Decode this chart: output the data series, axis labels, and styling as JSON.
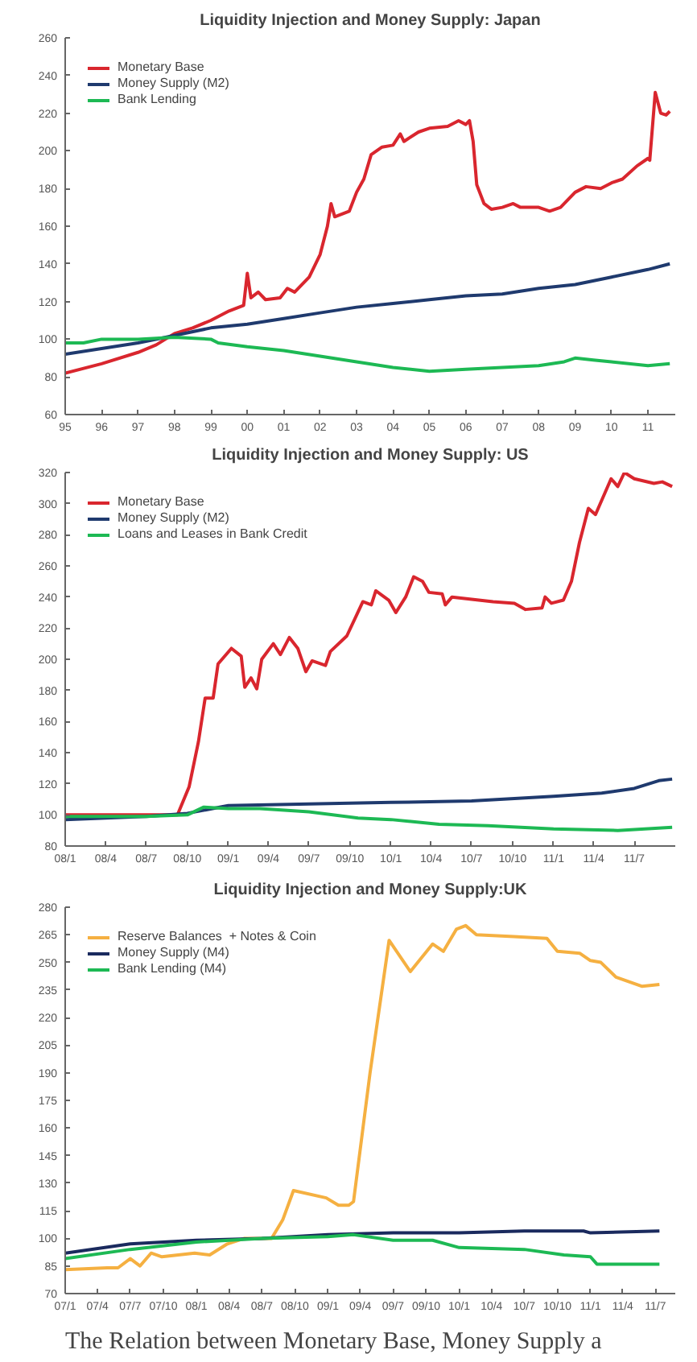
{
  "chart_data": [
    {
      "type": "line",
      "title": "Liquidity Injection and Money Supply: Japan",
      "legend": "top left",
      "grid": false,
      "xlim": [
        1995,
        2011.75
      ],
      "ylim": [
        60,
        260
      ],
      "xticks": [
        {
          "value": 1995,
          "label": "95"
        },
        {
          "value": 1996,
          "label": "96"
        },
        {
          "value": 1997,
          "label": "97"
        },
        {
          "value": 1998,
          "label": "98"
        },
        {
          "value": 1999,
          "label": "99"
        },
        {
          "value": 2000,
          "label": "00"
        },
        {
          "value": 2001,
          "label": "01"
        },
        {
          "value": 2002,
          "label": "02"
        },
        {
          "value": 2003,
          "label": "03"
        },
        {
          "value": 2004,
          "label": "04"
        },
        {
          "value": 2005,
          "label": "05"
        },
        {
          "value": 2006,
          "label": "06"
        },
        {
          "value": 2007,
          "label": "07"
        },
        {
          "value": 2008,
          "label": "08"
        },
        {
          "value": 2009,
          "label": "09"
        },
        {
          "value": 2010,
          "label": "10"
        },
        {
          "value": 2011,
          "label": "11"
        }
      ],
      "yticks": [
        60,
        80,
        100,
        120,
        140,
        160,
        180,
        200,
        220,
        240,
        260
      ],
      "series": [
        {
          "name": "Monetary Base",
          "color": "#d9262e",
          "x": [
            1995,
            1996,
            1997,
            1997.5,
            1998,
            1998.5,
            1999,
            1999.5,
            1999.9,
            2000.0,
            2000.1,
            2000.3,
            2000.5,
            2000.9,
            2001.1,
            2001.3,
            2001.7,
            2002,
            2002.2,
            2002.3,
            2002.4,
            2002.8,
            2003,
            2003.2,
            2003.4,
            2003.7,
            2004,
            2004.2,
            2004.3,
            2004.7,
            2005,
            2005.5,
            2005.8,
            2006,
            2006.1,
            2006.2,
            2006.3,
            2006.5,
            2006.7,
            2007,
            2007.3,
            2007.5,
            2008,
            2008.3,
            2008.6,
            2009,
            2009.3,
            2009.7,
            2010,
            2010.3,
            2010.7,
            2011,
            2011.05,
            2011.2,
            2011.35,
            2011.5,
            2011.6
          ],
          "values": [
            82,
            87,
            93,
            97,
            103,
            106,
            110,
            115,
            118,
            135,
            122,
            125,
            121,
            122,
            127,
            125,
            133,
            145,
            160,
            172,
            165,
            168,
            178,
            185,
            198,
            202,
            203,
            209,
            205,
            210,
            212,
            213,
            216,
            214,
            216,
            205,
            182,
            172,
            169,
            170,
            172,
            170,
            170,
            168,
            170,
            178,
            181,
            180,
            183,
            185,
            192,
            196,
            195,
            231,
            220,
            219,
            221
          ]
        },
        {
          "name": "Money Supply (M2)",
          "color": "#1f3a6e",
          "x": [
            1995,
            1996,
            1997,
            1998,
            1999,
            2000,
            2001,
            2002,
            2003,
            2004,
            2005,
            2006,
            2007,
            2008,
            2009,
            2010,
            2011,
            2011.6
          ],
          "values": [
            92,
            95,
            98,
            102,
            106,
            108,
            111,
            114,
            117,
            119,
            121,
            123,
            124,
            127,
            129,
            133,
            137,
            140
          ]
        },
        {
          "name": "Bank Lending",
          "color": "#1db954",
          "x": [
            1995,
            1995.5,
            1996,
            1997,
            1998,
            1999,
            1999.2,
            2000,
            2001,
            2002,
            2003,
            2004,
            2005,
            2006,
            2007,
            2008,
            2008.7,
            2009,
            2009.5,
            2010,
            2011,
            2011.6
          ],
          "values": [
            98,
            98,
            100,
            100,
            101,
            100,
            98,
            96,
            94,
            91,
            88,
            85,
            83,
            84,
            85,
            86,
            88,
            90,
            89,
            88,
            86,
            87
          ]
        }
      ]
    },
    {
      "type": "line",
      "title": "Liquidity Injection and Money Supply: US",
      "legend": "top left",
      "grid": false,
      "xlim": [
        "2008-01-01",
        "2011-10-01"
      ],
      "ylim": [
        80,
        320
      ],
      "xticks": [
        {
          "value": "2008-01",
          "label": "08/1"
        },
        {
          "value": "2008-04",
          "label": "08/4"
        },
        {
          "value": "2008-07",
          "label": "08/7"
        },
        {
          "value": "2008-10",
          "label": "08/10"
        },
        {
          "value": "2009-01",
          "label": "09/1"
        },
        {
          "value": "2009-04",
          "label": "09/4"
        },
        {
          "value": "2009-07",
          "label": "09/7"
        },
        {
          "value": "2009-10",
          "label": "09/10"
        },
        {
          "value": "2010-01",
          "label": "10/1"
        },
        {
          "value": "2010-04",
          "label": "10/4"
        },
        {
          "value": "2010-07",
          "label": "10/7"
        },
        {
          "value": "2010-10",
          "label": "10/10"
        },
        {
          "value": "2011-01",
          "label": "11/1"
        },
        {
          "value": "2011-04",
          "label": "11/4"
        },
        {
          "value": "2011-07",
          "label": "11/7"
        }
      ],
      "yticks": [
        80,
        100,
        120,
        140,
        160,
        180,
        200,
        220,
        240,
        260,
        280,
        300,
        320
      ],
      "series": [
        {
          "name": "Monetary Base",
          "color": "#d9262e",
          "x": [
            "2008-01-01",
            "2008-09-09",
            "2008-10-05",
            "2008-10-26",
            "2008-11-10",
            "2008-11-28",
            "2008-12-09",
            "2009-01-08",
            "2009-01-30",
            "2009-02-07",
            "2009-02-21",
            "2009-03-06",
            "2009-03-17",
            "2009-04-12",
            "2009-04-28",
            "2009-05-18",
            "2009-06-06",
            "2009-06-24",
            "2009-07-08",
            "2009-08-07",
            "2009-08-18",
            "2009-09-24",
            "2009-10-30",
            "2009-11-18",
            "2009-11-28",
            "2009-12-27",
            "2010-01-12",
            "2010-02-03",
            "2010-02-21",
            "2010-03-13",
            "2010-03-27",
            "2010-04-26",
            "2010-05-03",
            "2010-05-18",
            "2010-08-18",
            "2010-10-05",
            "2010-10-30",
            "2010-12-06",
            "2010-12-13",
            "2010-12-27",
            "2011-01-23",
            "2011-02-10",
            "2011-02-28",
            "2011-03-20",
            "2011-04-05",
            "2011-05-10",
            "2011-05-25",
            "2011-06-09",
            "2011-07-01",
            "2011-08-14",
            "2011-09-02",
            "2011-09-24"
          ],
          "values": [
            100,
            100,
            118,
            147,
            175,
            175,
            197,
            207,
            202,
            182,
            188,
            181,
            200,
            210,
            203,
            214,
            207,
            192,
            199,
            196,
            205,
            215,
            237,
            235,
            244,
            238,
            230,
            240,
            253,
            250,
            243,
            242,
            235,
            240,
            237,
            236,
            232,
            233,
            240,
            236,
            238,
            250,
            275,
            297,
            293,
            316,
            311,
            320,
            316,
            313,
            314,
            311
          ]
        },
        {
          "name": "Money Supply (M2)",
          "color": "#1f3a6e",
          "x": [
            "2008-01-01",
            "2008-07-01",
            "2008-10-01",
            "2009-01-01",
            "2009-07-01",
            "2010-01-01",
            "2010-07-01",
            "2011-01-01",
            "2011-04-19",
            "2011-07-01",
            "2011-08-25",
            "2011-09-24"
          ],
          "values": [
            97,
            99,
            101,
            106,
            107,
            108,
            109,
            112,
            114,
            117,
            122,
            123
          ]
        },
        {
          "name": "Loans and Leases in Bank Credit",
          "color": "#1db954",
          "x": [
            "2008-01-01",
            "2008-07-01",
            "2008-10-01",
            "2008-11-07",
            "2009-01-01",
            "2009-03-13",
            "2009-07-01",
            "2009-10-19",
            "2010-01-01",
            "2010-04-19",
            "2010-08-07",
            "2011-01-01",
            "2011-05-25",
            "2011-09-24"
          ],
          "values": [
            99,
            99,
            100,
            105,
            104,
            104,
            102,
            98,
            97,
            94,
            93,
            91,
            90,
            92
          ]
        }
      ]
    },
    {
      "type": "line",
      "title": "Liquidity Injection and Money Supply:UK",
      "legend": "top left",
      "grid": false,
      "xlim": [
        "2007-01-01",
        "2011-08-25"
      ],
      "ylim": [
        70,
        280
      ],
      "xticks": [
        {
          "value": "2007-01",
          "label": "07/1"
        },
        {
          "value": "2007-04",
          "label": "07/4"
        },
        {
          "value": "2007-07",
          "label": "07/7"
        },
        {
          "value": "2007-10",
          "label": "07/10"
        },
        {
          "value": "2008-01",
          "label": "08/1"
        },
        {
          "value": "2008-04",
          "label": "08/4"
        },
        {
          "value": "2008-07",
          "label": "08/7"
        },
        {
          "value": "2008-10",
          "label": "08/10"
        },
        {
          "value": "2009-01",
          "label": "09/1"
        },
        {
          "value": "2009-04",
          "label": "09/4"
        },
        {
          "value": "2009-07",
          "label": "09/7"
        },
        {
          "value": "2009-10",
          "label": "09/10"
        },
        {
          "value": "2010-01",
          "label": "10/1"
        },
        {
          "value": "2010-04",
          "label": "10/4"
        },
        {
          "value": "2010-07",
          "label": "10/7"
        },
        {
          "value": "2010-10",
          "label": "10/10"
        },
        {
          "value": "2011-01",
          "label": "11/1"
        },
        {
          "value": "2011-04",
          "label": "11/4"
        },
        {
          "value": "2011-07",
          "label": "11/7"
        }
      ],
      "yticks": [
        70,
        85,
        100,
        115,
        130,
        145,
        160,
        175,
        190,
        205,
        220,
        235,
        250,
        265,
        280
      ],
      "annotations": [
        "The Relation between Monetary Base, Money Supply a"
      ],
      "series": [
        {
          "name": "Reserve Balances  + Notes & Coin",
          "color": "#f5b041",
          "x": [
            "2007-01-01",
            "2007-04-28",
            "2007-05-28",
            "2007-07-01",
            "2007-07-28",
            "2007-08-28",
            "2007-09-27",
            "2007-12-27",
            "2008-02-07",
            "2008-03-27",
            "2008-05-14",
            "2008-07-28",
            "2008-08-28",
            "2008-09-27",
            "2008-12-27",
            "2009-01-30",
            "2009-02-28",
            "2009-03-13",
            "2009-04-28",
            "2009-06-20",
            "2009-08-18",
            "2009-10-19",
            "2009-11-18",
            "2009-12-24",
            "2010-01-19",
            "2010-02-18",
            "2010-06-02",
            "2010-09-02",
            "2010-10-01",
            "2010-12-02",
            "2011-01-01",
            "2011-01-30",
            "2011-03-13",
            "2011-05-25",
            "2011-07-12"
          ],
          "values": [
            83,
            84,
            84,
            89,
            85,
            92,
            90,
            92,
            91,
            97,
            100,
            100,
            110,
            126,
            122,
            118,
            118,
            120,
            190,
            262,
            245,
            260,
            256,
            268,
            270,
            265,
            264,
            263,
            256,
            255,
            251,
            250,
            242,
            237,
            238
          ]
        },
        {
          "name": "Money Supply (M4)",
          "color": "#1a2a5e",
          "x": [
            "2007-01-01",
            "2007-07-01",
            "2008-01-01",
            "2008-07-01",
            "2009-01-01",
            "2009-07-01",
            "2010-01-01",
            "2010-07-01",
            "2010-12-13",
            "2011-01-01",
            "2011-07-12"
          ],
          "values": [
            92,
            97,
            99,
            100,
            102,
            103,
            103,
            104,
            104,
            103,
            104
          ]
        },
        {
          "name": "Bank Lending (M4)",
          "color": "#1db954",
          "x": [
            "2007-01-01",
            "2007-07-01",
            "2008-01-01",
            "2008-07-01",
            "2009-01-01",
            "2009-03-13",
            "2009-07-01",
            "2009-10-19",
            "2010-01-01",
            "2010-07-01",
            "2010-10-19",
            "2011-01-01",
            "2011-01-19",
            "2011-07-12"
          ],
          "values": [
            89,
            94,
            98,
            100,
            101,
            102,
            99,
            99,
            95,
            94,
            91,
            90,
            86,
            86
          ]
        }
      ]
    }
  ]
}
